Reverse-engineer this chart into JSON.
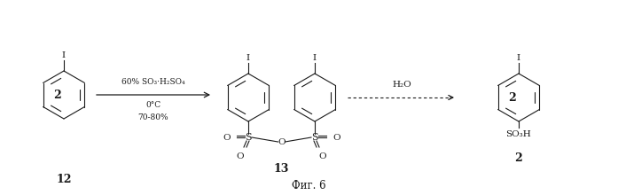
{
  "title": "Фиг. 6",
  "background": "#ffffff",
  "text_color": "#1a1a1a",
  "arrow1_label_top": "60% SO₃·H₂SO₄",
  "arrow1_label_mid": "0°C",
  "arrow1_label_bot": "70-80%",
  "arrow2_label_top": "H₂O",
  "compound_12": "12",
  "compound_13": "13",
  "compound_2_left": "2",
  "compound_2_right": "2",
  "label_2_left": "2"
}
